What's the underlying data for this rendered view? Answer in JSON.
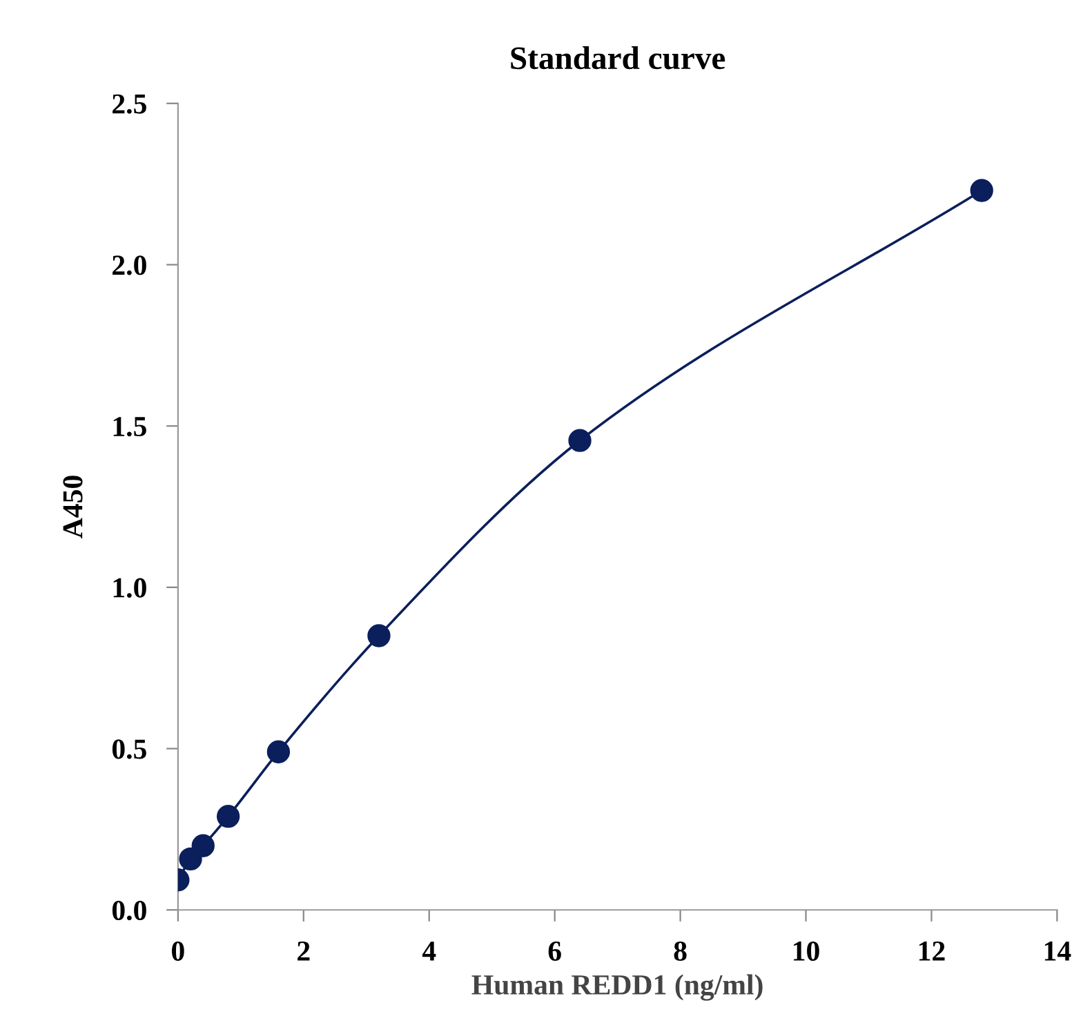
{
  "chart_data": {
    "type": "line",
    "title": "Standard curve",
    "xlabel": "Human REDD1 (ng/ml)",
    "ylabel": "A450",
    "x": [
      0,
      0.2,
      0.4,
      0.8,
      1.6,
      3.2,
      6.4,
      12.8
    ],
    "series": [
      {
        "color": "#0b1f5c",
        "values": [
          0.093,
          0.158,
          0.199,
          0.29,
          0.49,
          0.85,
          1.455,
          2.23
        ]
      }
    ],
    "xlim": [
      0,
      14
    ],
    "xticks": [
      0,
      2,
      4,
      6,
      8,
      10,
      12,
      14
    ],
    "ylim": [
      0,
      2.5
    ],
    "yticks": [
      {
        "value": 0,
        "label": "0.0"
      },
      {
        "value": 0.5,
        "label": "0.5"
      },
      {
        "value": 1,
        "label": "1.0"
      },
      {
        "value": 1.5,
        "label": "1.5"
      },
      {
        "value": 2,
        "label": "2.0"
      },
      {
        "value": 2.5,
        "label": "2.5"
      }
    ],
    "grid": false,
    "marker": "circle",
    "line_style": "solid"
  }
}
